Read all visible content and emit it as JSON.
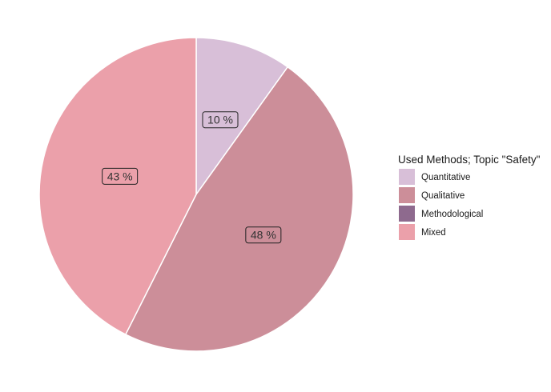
{
  "chart_data": {
    "type": "pie",
    "categories": [
      "Quantitative",
      "Qualitative",
      "Methodological",
      "Mixed"
    ],
    "values": [
      10,
      48,
      0,
      43
    ],
    "data_labels": [
      "10 %",
      "48 %",
      "",
      "43 %"
    ],
    "colors": [
      "#d8bfd8",
      "#cc8e99",
      "#8e6a8e",
      "#eba0aa"
    ],
    "start": "top",
    "direction": "clockwise",
    "legend": {
      "title": "Used Methods; Topic \"Safety\"",
      "position": "right",
      "items": [
        "Quantitative",
        "Qualitative",
        "Methodological",
        "Mixed"
      ]
    }
  }
}
